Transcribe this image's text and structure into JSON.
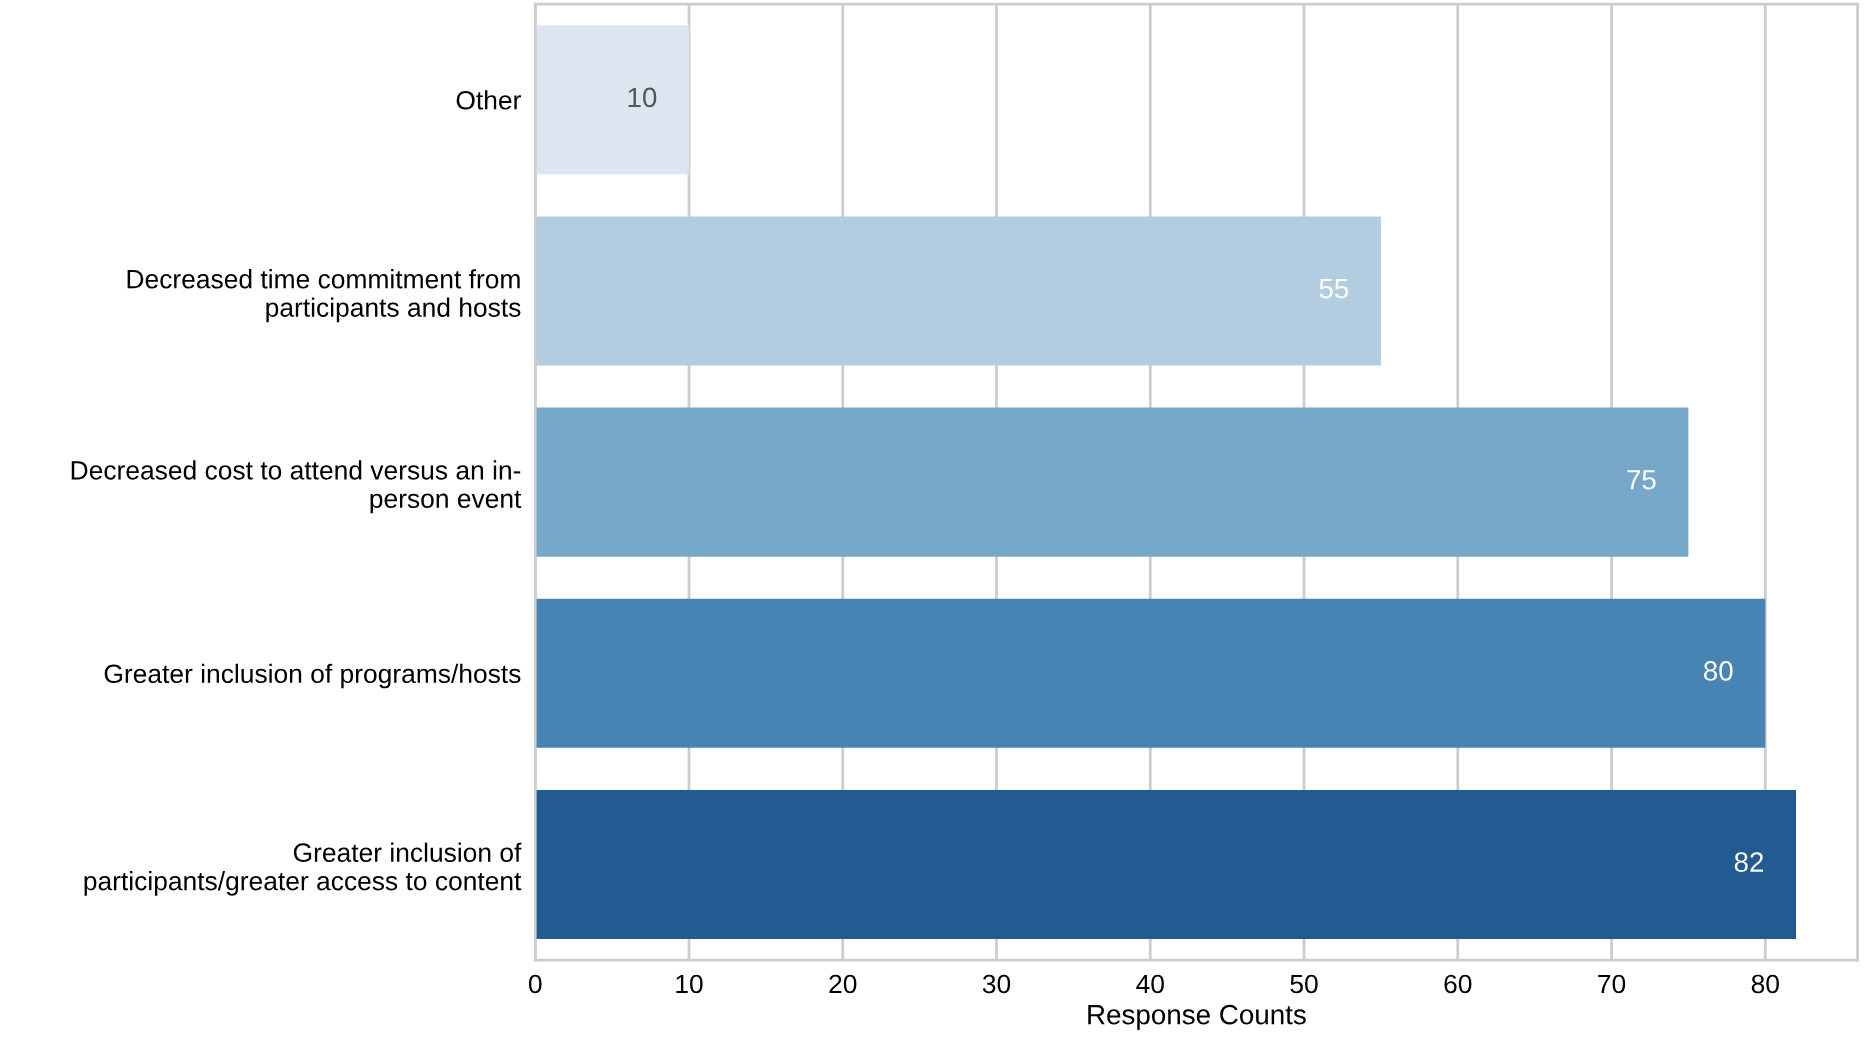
{
  "chart_data": {
    "type": "bar",
    "orientation": "horizontal",
    "xlabel": "Response Counts",
    "categories": [
      "Other",
      "Decreased time commitment from\nparticipants and hosts",
      "Decreased cost to attend versus an in-\nperson event",
      "Greater inclusion of programs/hosts",
      "Greater inclusion of\nparticipants/greater access to content"
    ],
    "values": [
      10,
      55,
      75,
      80,
      82
    ],
    "colors": [
      "#dce6f1",
      "#b3cde0",
      "#77a8c9",
      "#4884b3",
      "#215b91"
    ],
    "xlim": [
      0,
      86
    ],
    "xticks": [
      0,
      10,
      20,
      30,
      40,
      50,
      60,
      70,
      80
    ],
    "grid": "x",
    "data_labels": true
  }
}
